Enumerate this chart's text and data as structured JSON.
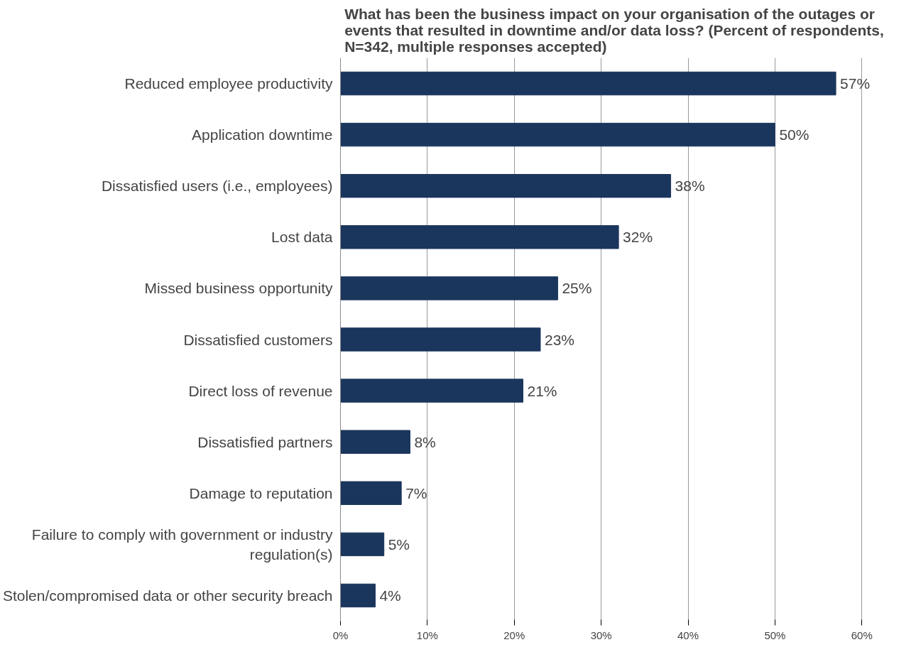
{
  "chart_data": {
    "type": "bar",
    "orientation": "horizontal",
    "title": "What has been the business impact on your organisation of the outages or events that resulted in downtime and/or data loss? (Percent of respondents, N=342, multiple responses accepted)",
    "categories": [
      "Reduced employee productivity",
      "Application downtime",
      "Dissatisfied users (i.e., employees)",
      "Lost data",
      "Missed business opportunity",
      "Dissatisfied customers",
      "Direct loss of revenue",
      "Dissatisfied partners",
      "Damage to reputation",
      "Failure to comply with government or industry regulation(s)",
      "Stolen/compromised data or other security breach"
    ],
    "values": [
      57,
      50,
      38,
      32,
      25,
      23,
      21,
      8,
      7,
      5,
      4
    ],
    "value_labels": [
      "57%",
      "50%",
      "38%",
      "32%",
      "25%",
      "23%",
      "21%",
      "8%",
      "7%",
      "5%",
      "4%"
    ],
    "color": "#1b365d",
    "xlim": [
      0,
      60
    ],
    "xticks": [
      {
        "value": 0,
        "label": "0%"
      },
      {
        "value": 10,
        "label": "10%"
      },
      {
        "value": 20,
        "label": "20%"
      },
      {
        "value": 30,
        "label": "30%"
      },
      {
        "value": 40,
        "label": "40%"
      },
      {
        "value": 50,
        "label": "50%"
      },
      {
        "value": 60,
        "label": "60%"
      }
    ],
    "grid": "x"
  }
}
